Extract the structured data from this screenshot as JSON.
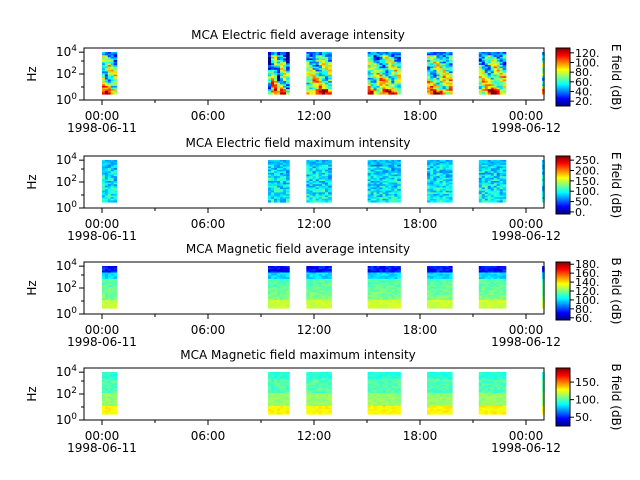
{
  "chart_data": [
    {
      "type": "heatmap",
      "title": "MCA  Electric field average intensity",
      "ylabel": "Hz",
      "yscale": "log",
      "yticks": [
        "10^0",
        "10^2",
        "10^4"
      ],
      "xticks": [
        {
          "time": "00:00",
          "date": "1998-06-11"
        },
        {
          "time": "06:00",
          "date": ""
        },
        {
          "time": "12:00",
          "date": ""
        },
        {
          "time": "18:00",
          "date": ""
        },
        {
          "time": "00:00",
          "date": "1998-06-12"
        }
      ],
      "colorbar": {
        "label": "E field (dB)",
        "range": [
          10,
          130
        ],
        "ticks": [
          "20.",
          "40.",
          "60.",
          "80.",
          "100.",
          "120."
        ]
      },
      "data_segments_hours": [
        [
          0.0,
          1.7
        ],
        [
          9.6,
          10.7
        ],
        [
          11.6,
          12.9
        ],
        [
          14.8,
          16.5
        ],
        [
          17.9,
          19.2
        ],
        [
          20.6,
          22.0
        ],
        [
          23.9,
          24.0
        ]
      ],
      "intensity_profile": "average",
      "field": "electric"
    },
    {
      "type": "heatmap",
      "title": "MCA  Electric field maximum intensity",
      "ylabel": "Hz",
      "yscale": "log",
      "yticks": [
        "10^0",
        "10^2",
        "10^4"
      ],
      "xticks": [
        {
          "time": "00:00",
          "date": "1998-06-11"
        },
        {
          "time": "06:00",
          "date": ""
        },
        {
          "time": "12:00",
          "date": ""
        },
        {
          "time": "18:00",
          "date": ""
        },
        {
          "time": "00:00",
          "date": "1998-06-12"
        }
      ],
      "colorbar": {
        "label": "E field (dB)",
        "range": [
          -10,
          270
        ],
        "ticks": [
          "0.",
          "50.",
          "100.",
          "150.",
          "200.",
          "250."
        ]
      },
      "data_segments_hours": [
        [
          0.0,
          1.7
        ],
        [
          9.6,
          10.7
        ],
        [
          11.6,
          12.9
        ],
        [
          14.8,
          16.5
        ],
        [
          17.9,
          19.2
        ],
        [
          20.6,
          22.0
        ],
        [
          23.9,
          24.0
        ]
      ],
      "intensity_profile": "maximum",
      "field": "electric"
    },
    {
      "type": "heatmap",
      "title": "MCA  Magnetic field average intensity",
      "ylabel": "Hz",
      "yscale": "log",
      "yticks": [
        "10^0",
        "10^2",
        "10^4"
      ],
      "xticks": [
        {
          "time": "00:00",
          "date": "1998-06-11"
        },
        {
          "time": "06:00",
          "date": ""
        },
        {
          "time": "12:00",
          "date": ""
        },
        {
          "time": "18:00",
          "date": ""
        },
        {
          "time": "00:00",
          "date": "1998-06-12"
        }
      ],
      "colorbar": {
        "label": "B field (dB)",
        "range": [
          55,
          185
        ],
        "ticks": [
          "60.",
          "80.",
          "100.",
          "120.",
          "140.",
          "160.",
          "180."
        ]
      },
      "data_segments_hours": [
        [
          0.0,
          1.7
        ],
        [
          9.6,
          10.7
        ],
        [
          11.6,
          12.9
        ],
        [
          14.8,
          16.5
        ],
        [
          17.9,
          19.2
        ],
        [
          20.6,
          22.0
        ],
        [
          23.9,
          24.0
        ]
      ],
      "intensity_profile": "magnetic-average",
      "field": "magnetic"
    },
    {
      "type": "heatmap",
      "title": "MCA  Magnetic field maximum intensity",
      "ylabel": "Hz",
      "yscale": "log",
      "yticks": [
        "10^0",
        "10^2",
        "10^4"
      ],
      "xticks": [
        {
          "time": "00:00",
          "date": "1998-06-11"
        },
        {
          "time": "06:00",
          "date": ""
        },
        {
          "time": "12:00",
          "date": ""
        },
        {
          "time": "18:00",
          "date": ""
        },
        {
          "time": "00:00",
          "date": "1998-06-12"
        }
      ],
      "colorbar": {
        "label": "B field (dB)",
        "range": [
          25,
          190
        ],
        "ticks": [
          "50.",
          "100.",
          "150."
        ]
      },
      "data_segments_hours": [
        [
          0.0,
          1.7
        ],
        [
          9.6,
          10.7
        ],
        [
          11.6,
          12.9
        ],
        [
          14.8,
          16.5
        ],
        [
          17.9,
          19.2
        ],
        [
          20.6,
          22.0
        ],
        [
          23.9,
          24.0
        ]
      ],
      "intensity_profile": "magnetic-maximum",
      "field": "magnetic"
    }
  ],
  "jet_colors": [
    "#000080",
    "#0000ff",
    "#0080ff",
    "#00ffff",
    "#80ff80",
    "#ffff00",
    "#ff8000",
    "#ff0000",
    "#800000"
  ]
}
